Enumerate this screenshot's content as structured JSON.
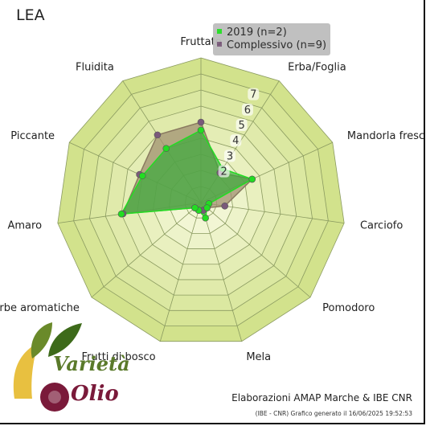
{
  "chart_data": {
    "type": "radar",
    "title": "LEA",
    "axes": [
      "Fruttato",
      "Erba/Foglia",
      "Mandorla fresca",
      "Carciofo",
      "Pomodoro",
      "Mela",
      "Frutti di bosco",
      "Erbe aromatiche",
      "Amaro",
      "Piccante",
      "Fluidita"
    ],
    "rlim": [
      0,
      9
    ],
    "ticks": [
      2,
      3,
      4,
      5,
      6,
      7
    ],
    "grid": true,
    "legend_position": "top-right",
    "series": [
      {
        "name": "2019 (n=2)",
        "color": "#22dd22",
        "fill": "#3aaa3a",
        "values": [
          4.5,
          2.5,
          3.5,
          0.5,
          0.5,
          1.0,
          0.5,
          0.5,
          5.0,
          4.0,
          4.0
        ]
      },
      {
        "name": "Complessivo (n=9)",
        "color": "#7a5a7a",
        "fill": "#a09070",
        "values": [
          5.0,
          2.2,
          3.5,
          1.5,
          0.5,
          0.5,
          0.5,
          0.5,
          4.9,
          4.2,
          5.0
        ]
      }
    ]
  },
  "footer": {
    "credit": "Elaborazioni AMAP Marche & IBE CNR",
    "generated": "(IBE - CNR) Grafico generato il 16/06/2025 19:52:53"
  },
  "logo": {
    "word1": "Varietà",
    "word2": "Olio"
  },
  "colors": {
    "ring_outer": "#d2e28c",
    "ring_inner": "#f5f8dc",
    "grid": "#8a9a60"
  }
}
